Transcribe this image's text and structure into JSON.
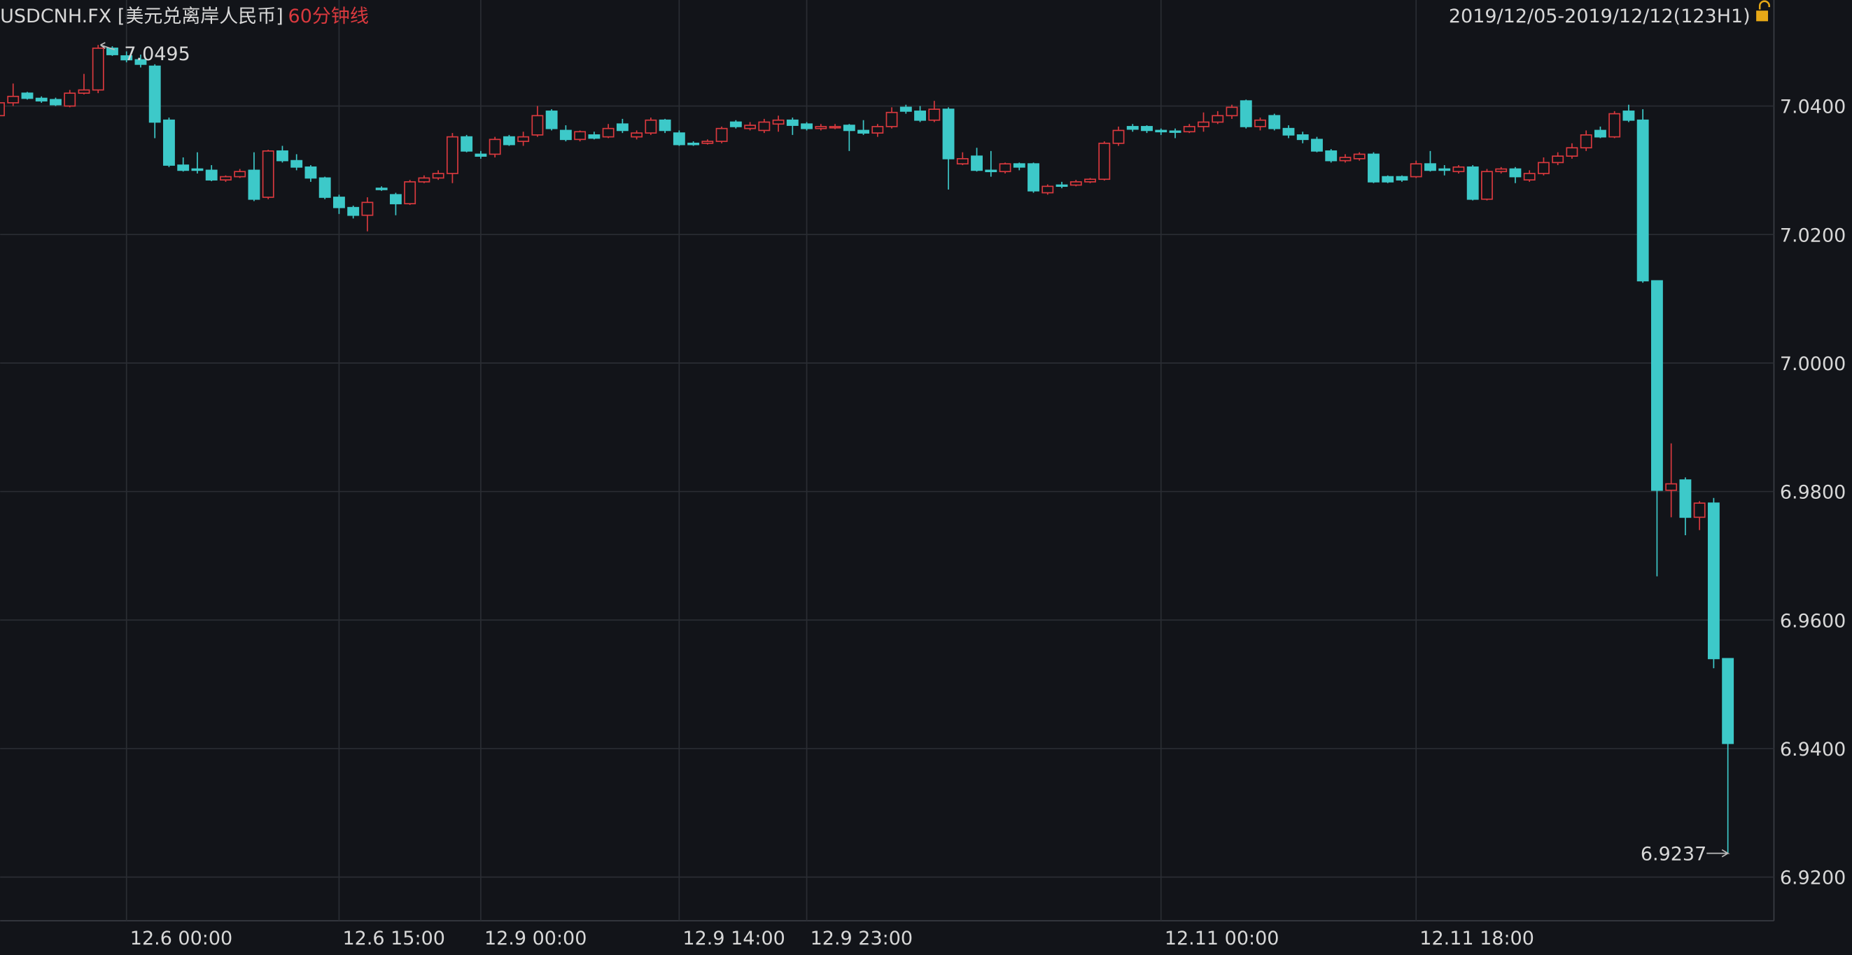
{
  "chart_data": {
    "type": "candlestick",
    "title": "USDCNH.FX [美元兑离岸人民币]",
    "period": "60分钟线",
    "range_label": "2019/12/05-2019/12/12(123H1)",
    "up_color": "#d9393e",
    "down_color": "#3dc9c9",
    "max_color": "#e0393e",
    "min_color": "#2ebd5a",
    "grid": true,
    "ylim": [
      6.9132,
      7.0565
    ],
    "yticks": [
      {
        "value": 6.92,
        "label": "6.9200"
      },
      {
        "value": 6.94,
        "label": "6.9400"
      },
      {
        "value": 6.96,
        "label": "6.9600"
      },
      {
        "value": 6.98,
        "label": "6.9800"
      },
      {
        "value": 7.0,
        "label": "7.0000"
      },
      {
        "value": 7.02,
        "label": "7.0200"
      },
      {
        "value": 7.04,
        "label": "7.0400"
      }
    ],
    "categories": [
      null,
      null,
      null,
      null,
      null,
      null,
      null,
      null,
      null,
      "12.6 00:00",
      null,
      null,
      null,
      null,
      null,
      null,
      null,
      null,
      null,
      null,
      null,
      null,
      null,
      null,
      "12.6 15:00",
      null,
      null,
      null,
      null,
      null,
      null,
      null,
      null,
      null,
      "12.9 00:00",
      null,
      null,
      null,
      null,
      null,
      null,
      null,
      null,
      null,
      null,
      null,
      null,
      null,
      "12.9 14:00",
      null,
      null,
      null,
      null,
      null,
      null,
      null,
      null,
      "12.9 23:00",
      null,
      null,
      null,
      null,
      null,
      null,
      null,
      null,
      null,
      null,
      null,
      null,
      null,
      null,
      null,
      null,
      null,
      null,
      null,
      null,
      null,
      null,
      null,
      null,
      "12.11 00:00",
      null,
      null,
      null,
      null,
      null,
      null,
      null,
      null,
      null,
      null,
      null,
      null,
      null,
      null,
      null,
      null,
      null,
      "12.11 18:00",
      null,
      null,
      null,
      null,
      null,
      null,
      null,
      null,
      null,
      null,
      null,
      null,
      null,
      null,
      null,
      null,
      null,
      null,
      null,
      null,
      null,
      null
    ],
    "open": [
      7.0385,
      7.0405,
      7.042,
      7.0412,
      7.041,
      7.04,
      7.042,
      7.0425,
      7.049,
      7.0478,
      7.0472,
      7.0462,
      7.0378,
      7.0308,
      7.0302,
      7.03,
      7.0285,
      7.029,
      7.03,
      7.0258,
      7.033,
      7.0315,
      7.0305,
      7.0288,
      7.0258,
      7.0242,
      7.023,
      7.0272,
      7.0262,
      7.0248,
      7.0282,
      7.0288,
      7.0295,
      7.0352,
      7.0325,
      7.0325,
      7.0352,
      7.0345,
      7.0355,
      7.0392,
      7.0362,
      7.0348,
      7.0355,
      7.0352,
      7.0372,
      7.0352,
      7.0358,
      7.0378,
      7.0358,
      7.0342,
      7.0342,
      7.0345,
      7.0375,
      7.0365,
      7.0362,
      7.0372,
      7.0378,
      7.0372,
      7.0365,
      7.0366,
      7.037,
      7.0362,
      7.0358,
      7.0368,
      7.0398,
      7.0392,
      7.0378,
      7.0395,
      7.031,
      7.0322,
      7.03,
      7.0298,
      7.031,
      7.031,
      7.0265,
      7.0277,
      7.0277,
      7.0282,
      7.0286,
      7.0342,
      7.0368,
      7.0368,
      7.0362,
      7.0361,
      7.036,
      7.0368,
      7.0375,
      7.0385,
      7.0408,
      7.0368,
      7.0385,
      7.0365,
      7.0355,
      7.0348,
      7.033,
      7.0315,
      7.0318,
      7.0325,
      7.029,
      7.029,
      7.029,
      7.031,
      7.0302,
      7.0298,
      7.0305,
      7.0255,
      7.0298,
      7.0302,
      7.0285,
      7.0295,
      7.0312,
      7.0322,
      7.0335,
      7.0362,
      7.0352,
      7.0392,
      7.0378,
      7.0128,
      6.9802,
      6.9818,
      6.976,
      6.9782,
      6.954
    ],
    "high": [
      7.0415,
      7.0435,
      7.0422,
      7.0415,
      7.0413,
      7.0425,
      7.045,
      7.0495,
      7.0493,
      7.0485,
      7.048,
      7.0465,
      7.0382,
      7.032,
      7.0328,
      7.0308,
      7.0292,
      7.0302,
      7.0328,
      7.0332,
      7.0338,
      7.0325,
      7.0308,
      7.029,
      7.0262,
      7.0245,
      7.0258,
      7.0275,
      7.0265,
      7.0285,
      7.0292,
      7.03,
      7.0358,
      7.0355,
      7.033,
      7.0352,
      7.0355,
      7.036,
      7.04,
      7.0395,
      7.037,
      7.0362,
      7.036,
      7.0372,
      7.038,
      7.0362,
      7.0382,
      7.038,
      7.0362,
      7.0345,
      7.0348,
      7.0368,
      7.0378,
      7.0375,
      7.038,
      7.0385,
      7.0382,
      7.0375,
      7.0372,
      7.0372,
      7.0372,
      7.0378,
      7.0372,
      7.0398,
      7.0402,
      7.04,
      7.0408,
      7.0398,
      7.0328,
      7.0335,
      7.033,
      7.0312,
      7.0312,
      7.0312,
      7.0278,
      7.0282,
      7.0285,
      7.0288,
      7.0345,
      7.0368,
      7.0372,
      7.037,
      7.0365,
      7.0365,
      7.0372,
      7.039,
      7.0392,
      7.0402,
      7.041,
      7.0382,
      7.0388,
      7.037,
      7.036,
      7.0352,
      7.0333,
      7.0325,
      7.0328,
      7.0328,
      7.0292,
      7.0292,
      7.0315,
      7.033,
      7.0308,
      7.0308,
      7.0308,
      7.0302,
      7.0305,
      7.0305,
      7.03,
      7.032,
      7.0328,
      7.0342,
      7.0362,
      7.0368,
      7.0392,
      7.0402,
      7.0395,
      7.0128,
      6.9875,
      6.9822,
      6.9785,
      6.979,
      6.954
    ],
    "low": [
      7.0378,
      7.04,
      7.041,
      7.0405,
      7.04,
      7.0398,
      7.0418,
      7.042,
      7.0478,
      7.0468,
      7.046,
      7.035,
      7.0305,
      7.0298,
      7.0295,
      7.0283,
      7.0282,
      7.0288,
      7.0252,
      7.0255,
      7.0312,
      7.03,
      7.0282,
      7.0255,
      7.0232,
      7.0225,
      7.0205,
      7.0268,
      7.023,
      7.0246,
      7.028,
      7.0285,
      7.028,
      7.0328,
      7.0318,
      7.032,
      7.0338,
      7.0338,
      7.0352,
      7.0362,
      7.0345,
      7.0345,
      7.0348,
      7.035,
      7.0358,
      7.0348,
      7.0355,
      7.0358,
      7.0338,
      7.0338,
      7.034,
      7.0342,
      7.0365,
      7.0362,
      7.0358,
      7.036,
      7.0355,
      7.0362,
      7.0362,
      7.0364,
      7.033,
      7.0355,
      7.0352,
      7.0365,
      7.0388,
      7.0375,
      7.0375,
      7.027,
      7.0308,
      7.0298,
      7.029,
      7.0295,
      7.03,
      7.0265,
      7.0262,
      7.0272,
      7.0275,
      7.028,
      7.0284,
      7.0338,
      7.036,
      7.0358,
      7.0355,
      7.035,
      7.0358,
      7.036,
      7.0372,
      7.038,
      7.0365,
      7.0362,
      7.0362,
      7.035,
      7.0342,
      7.0328,
      7.0312,
      7.0312,
      7.0315,
      7.028,
      7.028,
      7.0282,
      7.0288,
      7.0298,
      7.0292,
      7.0295,
      7.0253,
      7.0253,
      7.0295,
      7.028,
      7.0282,
      7.0292,
      7.0308,
      7.0318,
      7.033,
      7.035,
      7.035,
      7.0375,
      7.0125,
      6.9668,
      6.976,
      6.9732,
      6.974,
      6.9525,
      6.9237
    ],
    "close": [
      7.0405,
      7.0415,
      7.0412,
      7.0408,
      7.0402,
      7.042,
      7.0425,
      7.049,
      7.048,
      7.0472,
      7.0465,
      7.0375,
      7.0308,
      7.03,
      7.03,
      7.0285,
      7.029,
      7.0298,
      7.0255,
      7.033,
      7.0315,
      7.0305,
      7.0288,
      7.0258,
      7.0242,
      7.023,
      7.025,
      7.027,
      7.0248,
      7.0282,
      7.0288,
      7.0295,
      7.0352,
      7.033,
      7.0322,
      7.0348,
      7.034,
      7.0352,
      7.0385,
      7.0365,
      7.0348,
      7.036,
      7.035,
      7.0365,
      7.0362,
      7.0358,
      7.0378,
      7.0362,
      7.034,
      7.034,
      7.0345,
      7.0365,
      7.0368,
      7.037,
      7.0375,
      7.0378,
      7.037,
      7.0365,
      7.0368,
      7.0368,
      7.0362,
      7.0358,
      7.0368,
      7.039,
      7.0392,
      7.0378,
      7.0395,
      7.0318,
      7.0318,
      7.03,
      7.0298,
      7.031,
      7.0305,
      7.0268,
      7.0275,
      7.0276,
      7.0282,
      7.0286,
      7.0342,
      7.0362,
      7.0364,
      7.0362,
      7.036,
      7.036,
      7.0368,
      7.0375,
      7.0385,
      7.0398,
      7.0368,
      7.0378,
      7.0365,
      7.0355,
      7.0348,
      7.033,
      7.0315,
      7.032,
      7.0325,
      7.0282,
      7.0282,
      7.0285,
      7.031,
      7.03,
      7.03,
      7.0305,
      7.0255,
      7.0298,
      7.0302,
      7.029,
      7.0295,
      7.0312,
      7.0322,
      7.0335,
      7.0355,
      7.0352,
      7.0388,
      7.0378,
      7.0128,
      6.9802,
      6.9812,
      6.976,
      6.9782,
      6.954,
      6.9408
    ]
  }
}
